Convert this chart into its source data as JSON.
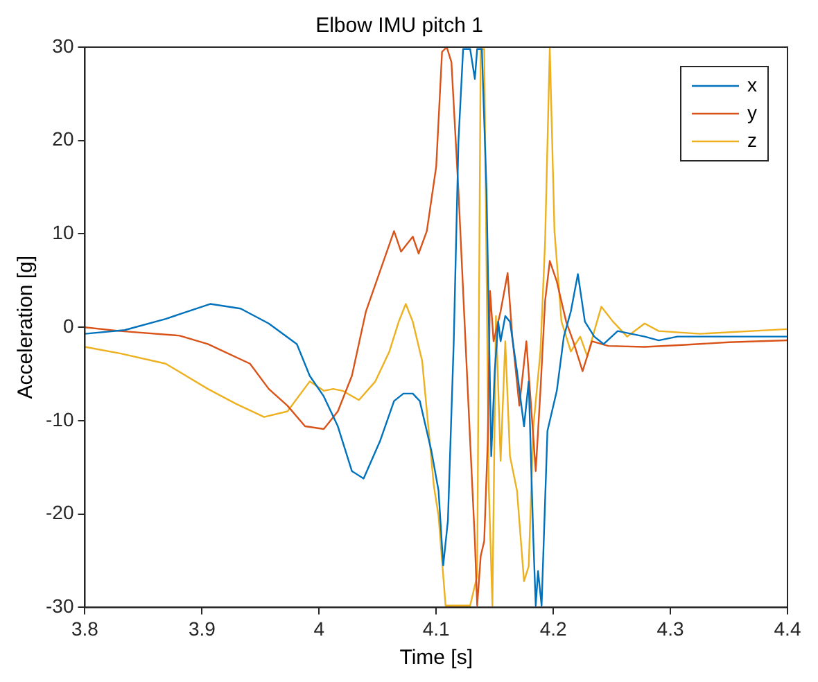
{
  "chart_data": {
    "type": "line",
    "title": "Elbow IMU pitch 1",
    "xlabel": "Time [s]",
    "ylabel": "Acceleration [g]",
    "xlim": [
      3.8,
      4.4
    ],
    "xticks": [
      3.8,
      3.9,
      4,
      4.1,
      4.2,
      4.3,
      4.4
    ],
    "ylim": [
      -30,
      30
    ],
    "yticks": [
      -30,
      -20,
      -10,
      0,
      10,
      20,
      30
    ],
    "grid": false,
    "legend": "top right",
    "marker": "none",
    "line_style": "solid",
    "series": [
      {
        "name": "x",
        "color": "#0072bd",
        "x": [
          3.8,
          3.834,
          3.869,
          3.907,
          3.933,
          3.957,
          3.981,
          3.992,
          4.004,
          4.016,
          4.028,
          4.038,
          4.052,
          4.064,
          4.072,
          4.08,
          4.086,
          4.096,
          4.102,
          4.106,
          4.11,
          4.115,
          4.119,
          4.123,
          4.129,
          4.133,
          4.135,
          4.139,
          4.143,
          4.147,
          4.15,
          4.153,
          4.155,
          4.159,
          4.163,
          4.169,
          4.175,
          4.179,
          4.183,
          4.185,
          4.187,
          4.19,
          4.195,
          4.203,
          4.209,
          4.215,
          4.221,
          4.227,
          4.235,
          4.243,
          4.255,
          4.278,
          4.29,
          4.306,
          4.4
        ],
        "values": [
          -0.7,
          -0.3,
          0.9,
          2.5,
          2.0,
          0.4,
          -1.8,
          -5.2,
          -7.4,
          -10.6,
          -15.4,
          -16.2,
          -12.2,
          -7.9,
          -7.1,
          -7.1,
          -7.9,
          -13.3,
          -17.5,
          -25.5,
          -20.7,
          -1.5,
          19.9,
          29.8,
          29.8,
          26.6,
          29.8,
          29.8,
          14.5,
          -13.8,
          -4.7,
          0.6,
          -1.5,
          1.2,
          0.6,
          -4.7,
          -10.6,
          -5.8,
          -22.9,
          -29.8,
          -26.1,
          -29.8,
          -11.1,
          -6.8,
          -1.0,
          1.7,
          5.7,
          0.6,
          -1.0,
          -1.8,
          -0.4,
          -1.0,
          -1.4,
          -1.0,
          -1.0
        ]
      },
      {
        "name": "y",
        "color": "#d95319",
        "x": [
          3.8,
          3.83,
          3.881,
          3.905,
          3.941,
          3.957,
          3.973,
          3.988,
          4.004,
          4.016,
          4.028,
          4.04,
          4.052,
          4.064,
          4.07,
          4.08,
          4.085,
          4.092,
          4.1,
          4.105,
          4.109,
          4.113,
          4.119,
          4.125,
          4.129,
          4.133,
          4.135,
          4.138,
          4.141,
          4.144,
          4.146,
          4.149,
          4.155,
          4.161,
          4.165,
          4.171,
          4.177,
          4.181,
          4.185,
          4.189,
          4.193,
          4.197,
          4.203,
          4.211,
          4.217,
          4.225,
          4.233,
          4.247,
          4.278,
          4.31,
          4.35,
          4.4
        ],
        "values": [
          0,
          -0.4,
          -0.9,
          -1.8,
          -3.9,
          -6.6,
          -8.4,
          -10.6,
          -10.9,
          -9.0,
          -5.2,
          1.7,
          6.0,
          10.3,
          8.1,
          9.7,
          7.9,
          10.3,
          17.2,
          29.5,
          30,
          28.4,
          14.6,
          -1.5,
          -12.2,
          -22.8,
          -29.8,
          -24.5,
          -22.9,
          -12.2,
          3.9,
          -1.5,
          1.7,
          5.8,
          -1.0,
          -8.4,
          -1.5,
          -8.4,
          -15.4,
          -6.8,
          2.8,
          7.1,
          4.9,
          0.6,
          -1.5,
          -4.7,
          -1.5,
          -2.0,
          -2.1,
          -1.9,
          -1.6,
          -1.4
        ]
      },
      {
        "name": "z",
        "color": "#edb120",
        "x": [
          3.8,
          3.83,
          3.869,
          3.905,
          3.929,
          3.953,
          3.973,
          3.992,
          4.004,
          4.012,
          4.02,
          4.034,
          4.048,
          4.06,
          4.068,
          4.074,
          4.08,
          4.088,
          4.098,
          4.102,
          4.108,
          4.129,
          4.135,
          4.138,
          4.141,
          4.145,
          4.148,
          4.151,
          4.155,
          4.159,
          4.163,
          4.169,
          4.175,
          4.179,
          4.183,
          4.189,
          4.193,
          4.197,
          4.201,
          4.207,
          4.215,
          4.223,
          4.229,
          4.235,
          4.241,
          4.251,
          4.263,
          4.278,
          4.29,
          4.325,
          4.4
        ],
        "values": [
          -2.1,
          -2.8,
          -3.9,
          -6.6,
          -8.2,
          -9.6,
          -9.0,
          -5.8,
          -6.8,
          -6.6,
          -6.8,
          -7.8,
          -5.8,
          -2.6,
          0.6,
          2.5,
          0.6,
          -3.6,
          -17.0,
          -20.2,
          -29.8,
          -29.8,
          -26.6,
          29.8,
          29.8,
          -17.5,
          -29.8,
          1.2,
          -14.3,
          -1.5,
          -13.8,
          -17.5,
          -27.2,
          -25.6,
          -10.6,
          -2.6,
          9.2,
          29.9,
          10.3,
          0.6,
          -2.6,
          -1.0,
          -3.1,
          -0.4,
          2.2,
          0.6,
          -1.0,
          0.4,
          -0.4,
          -0.7,
          -0.2
        ]
      }
    ]
  }
}
